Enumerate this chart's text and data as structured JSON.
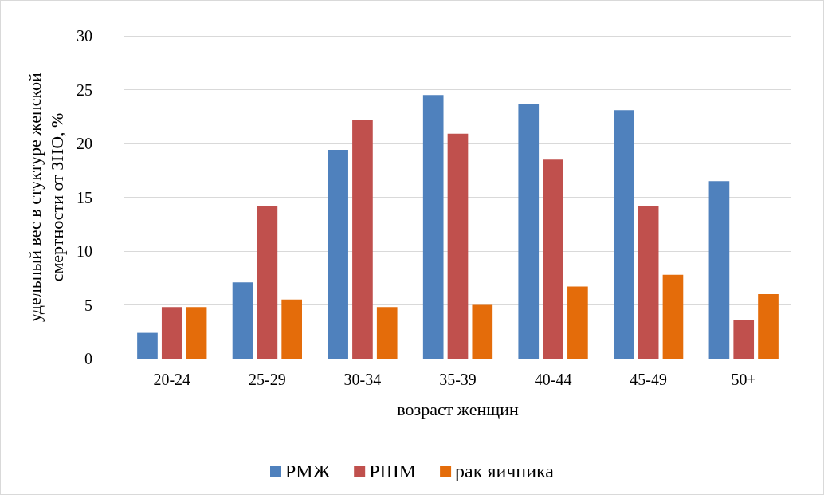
{
  "chart_data": {
    "type": "bar",
    "xlabel": "возраст женщин",
    "ylabel": "удельный вес в стуктуре женской\nсмертности от ЗНО, %",
    "categories": [
      "20-24",
      "25-29",
      "30-34",
      "35-39",
      "40-44",
      "45-49",
      "50+"
    ],
    "series": [
      {
        "name": "РМЖ",
        "color": "#4f81bd",
        "values": [
          2.4,
          7.1,
          19.4,
          24.5,
          23.7,
          23.1,
          16.5
        ]
      },
      {
        "name": "РШМ",
        "color": "#c0504d",
        "values": [
          4.8,
          14.2,
          22.2,
          20.9,
          18.5,
          14.2,
          3.6
        ]
      },
      {
        "name": "рак яичника",
        "color": "#e46c0a",
        "values": [
          4.8,
          5.5,
          4.8,
          5.0,
          6.7,
          7.8,
          6.0
        ]
      }
    ],
    "ylim": [
      0,
      30
    ],
    "yticks": [
      0,
      5,
      10,
      15,
      20,
      25,
      30
    ],
    "grid": "y",
    "legend": "bottom"
  }
}
